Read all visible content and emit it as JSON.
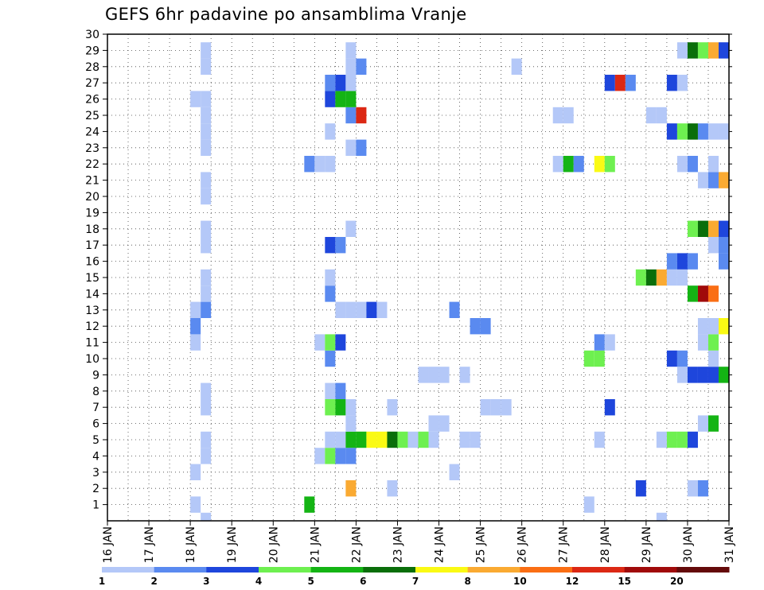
{
  "chart_data": {
    "type": "heatmap",
    "title": "GEFS 6hr padavine po ansamblima Vranje",
    "xlabel": "",
    "ylabel": "",
    "x_ticks": [
      "16 JAN",
      "17 JAN",
      "18 JAN",
      "19 JAN",
      "20 JAN",
      "21 JAN",
      "22 JAN",
      "23 JAN",
      "24 JAN",
      "25 JAN",
      "26 JAN",
      "27 JAN",
      "28 JAN",
      "29 JAN",
      "30 JAN",
      "31 JAN"
    ],
    "x_range_days": [
      0,
      15
    ],
    "y_ticks": [
      1,
      2,
      3,
      4,
      5,
      6,
      7,
      8,
      9,
      10,
      11,
      12,
      13,
      14,
      15,
      16,
      17,
      18,
      19,
      20,
      21,
      22,
      23,
      24,
      25,
      26,
      27,
      28,
      29,
      30
    ],
    "y_range": [
      0,
      30
    ],
    "grid": true,
    "colorbar": {
      "position": "bottom",
      "boundaries": [
        "1",
        "2",
        "3",
        "4",
        "5",
        "6",
        "7",
        "8",
        "10",
        "12",
        "15",
        "20"
      ],
      "colors": [
        "#b4c8f8",
        "#5a8af0",
        "#1e46dc",
        "#6ef050",
        "#14b414",
        "#0a6e0a",
        "#fafa14",
        "#faaa32",
        "#fa6e14",
        "#dc2814",
        "#a00a0a",
        "#640a0a"
      ]
    },
    "cells": [
      [
        2.0,
        1,
        1
      ],
      [
        4.75,
        1,
        5
      ],
      [
        11.5,
        1,
        1
      ],
      [
        5.75,
        2,
        8
      ],
      [
        6.75,
        2,
        1
      ],
      [
        12.75,
        2,
        3
      ],
      [
        14.0,
        2,
        1
      ],
      [
        14.25,
        2,
        2
      ],
      [
        2.0,
        3,
        1
      ],
      [
        8.25,
        3,
        1
      ],
      [
        2.25,
        4,
        1
      ],
      [
        5.0,
        4,
        1
      ],
      [
        5.25,
        4,
        4
      ],
      [
        5.5,
        4,
        2
      ],
      [
        5.75,
        4,
        2
      ],
      [
        2.25,
        5,
        1
      ],
      [
        5.25,
        5,
        1
      ],
      [
        5.5,
        5,
        1
      ],
      [
        5.75,
        5,
        5
      ],
      [
        6.0,
        5,
        5
      ],
      [
        6.25,
        5,
        7
      ],
      [
        6.5,
        5,
        7
      ],
      [
        6.75,
        5,
        6
      ],
      [
        7.0,
        5,
        4
      ],
      [
        7.25,
        5,
        1
      ],
      [
        7.5,
        5,
        4
      ],
      [
        7.75,
        5,
        1
      ],
      [
        8.5,
        5,
        1
      ],
      [
        8.75,
        5,
        1
      ],
      [
        11.75,
        5,
        1
      ],
      [
        13.25,
        5,
        1
      ],
      [
        13.5,
        5,
        4
      ],
      [
        13.75,
        5,
        4
      ],
      [
        14.0,
        5,
        3
      ],
      [
        5.75,
        6,
        1
      ],
      [
        7.75,
        6,
        1
      ],
      [
        8.0,
        6,
        1
      ],
      [
        14.25,
        6,
        1
      ],
      [
        14.5,
        6,
        5
      ],
      [
        2.25,
        7,
        1
      ],
      [
        5.25,
        7,
        4
      ],
      [
        5.5,
        7,
        5
      ],
      [
        5.75,
        7,
        1
      ],
      [
        6.75,
        7,
        1
      ],
      [
        9.0,
        7,
        1
      ],
      [
        9.25,
        7,
        1
      ],
      [
        9.5,
        7,
        1
      ],
      [
        12.0,
        7,
        3
      ],
      [
        2.25,
        8,
        1
      ],
      [
        5.25,
        8,
        1
      ],
      [
        5.5,
        8,
        2
      ],
      [
        7.5,
        9,
        1
      ],
      [
        7.75,
        9,
        1
      ],
      [
        8.0,
        9,
        1
      ],
      [
        8.5,
        9,
        1
      ],
      [
        13.75,
        9,
        1
      ],
      [
        14.0,
        9,
        3
      ],
      [
        14.25,
        9,
        3
      ],
      [
        14.5,
        9,
        3
      ],
      [
        14.75,
        9,
        5
      ],
      [
        5.25,
        10,
        2
      ],
      [
        11.5,
        10,
        4
      ],
      [
        11.75,
        10,
        4
      ],
      [
        13.5,
        10,
        3
      ],
      [
        13.75,
        10,
        2
      ],
      [
        14.5,
        10,
        1
      ],
      [
        2.0,
        11,
        1
      ],
      [
        5.0,
        11,
        1
      ],
      [
        5.25,
        11,
        4
      ],
      [
        5.5,
        11,
        3
      ],
      [
        11.75,
        11,
        2
      ],
      [
        12.0,
        11,
        1
      ],
      [
        14.25,
        11,
        1
      ],
      [
        14.5,
        11,
        4
      ],
      [
        2.0,
        12,
        2
      ],
      [
        8.75,
        12,
        2
      ],
      [
        9.0,
        12,
        2
      ],
      [
        14.25,
        12,
        1
      ],
      [
        14.5,
        12,
        1
      ],
      [
        14.75,
        12,
        7
      ],
      [
        2.0,
        13,
        1
      ],
      [
        2.25,
        13,
        2
      ],
      [
        5.5,
        13,
        1
      ],
      [
        5.75,
        13,
        1
      ],
      [
        6.0,
        13,
        1
      ],
      [
        6.25,
        13,
        3
      ],
      [
        6.5,
        13,
        1
      ],
      [
        8.25,
        13,
        2
      ],
      [
        2.25,
        14,
        1
      ],
      [
        5.25,
        14,
        2
      ],
      [
        14.0,
        14,
        5
      ],
      [
        14.25,
        14,
        11
      ],
      [
        14.5,
        14,
        9
      ],
      [
        2.25,
        15,
        1
      ],
      [
        5.25,
        15,
        1
      ],
      [
        12.75,
        15,
        4
      ],
      [
        13.0,
        15,
        6
      ],
      [
        13.25,
        15,
        8
      ],
      [
        13.5,
        15,
        1
      ],
      [
        13.75,
        15,
        1
      ],
      [
        13.5,
        16,
        2
      ],
      [
        13.75,
        16,
        3
      ],
      [
        14.0,
        16,
        2
      ],
      [
        14.75,
        16,
        2
      ],
      [
        2.25,
        17,
        1
      ],
      [
        5.25,
        17,
        3
      ],
      [
        5.5,
        17,
        2
      ],
      [
        14.5,
        17,
        1
      ],
      [
        14.75,
        17,
        2
      ],
      [
        2.25,
        18,
        1
      ],
      [
        5.75,
        18,
        1
      ],
      [
        14.0,
        18,
        4
      ],
      [
        14.25,
        18,
        6
      ],
      [
        14.5,
        18,
        8
      ],
      [
        14.75,
        18,
        3
      ],
      [
        2.25,
        20,
        1
      ],
      [
        2.25,
        21,
        1
      ],
      [
        14.25,
        21,
        1
      ],
      [
        14.5,
        21,
        2
      ],
      [
        14.75,
        21,
        8
      ],
      [
        4.75,
        22,
        2
      ],
      [
        5.0,
        22,
        1
      ],
      [
        5.25,
        22,
        1
      ],
      [
        10.75,
        22,
        1
      ],
      [
        11.0,
        22,
        5
      ],
      [
        11.25,
        22,
        2
      ],
      [
        11.75,
        22,
        7
      ],
      [
        12.0,
        22,
        4
      ],
      [
        13.75,
        22,
        1
      ],
      [
        14.0,
        22,
        2
      ],
      [
        14.5,
        22,
        1
      ],
      [
        2.25,
        23,
        1
      ],
      [
        5.75,
        23,
        1
      ],
      [
        6.0,
        23,
        2
      ],
      [
        2.25,
        24,
        1
      ],
      [
        5.25,
        24,
        1
      ],
      [
        13.5,
        24,
        3
      ],
      [
        13.75,
        24,
        4
      ],
      [
        14.0,
        24,
        6
      ],
      [
        14.25,
        24,
        2
      ],
      [
        14.5,
        24,
        1
      ],
      [
        14.75,
        24,
        1
      ],
      [
        2.25,
        25,
        1
      ],
      [
        5.75,
        25,
        2
      ],
      [
        6.0,
        25,
        10
      ],
      [
        10.75,
        25,
        1
      ],
      [
        11.0,
        25,
        1
      ],
      [
        13.0,
        25,
        1
      ],
      [
        13.25,
        25,
        1
      ],
      [
        2.0,
        26,
        1
      ],
      [
        2.25,
        26,
        1
      ],
      [
        5.25,
        26,
        3
      ],
      [
        5.5,
        26,
        5
      ],
      [
        5.75,
        26,
        5
      ],
      [
        5.25,
        27,
        2
      ],
      [
        5.5,
        27,
        3
      ],
      [
        5.75,
        27,
        1
      ],
      [
        12.0,
        27,
        3
      ],
      [
        12.25,
        27,
        10
      ],
      [
        12.5,
        27,
        2
      ],
      [
        13.5,
        27,
        3
      ],
      [
        13.75,
        27,
        1
      ],
      [
        2.25,
        28,
        1
      ],
      [
        5.75,
        28,
        1
      ],
      [
        6.0,
        28,
        2
      ],
      [
        9.75,
        28,
        1
      ],
      [
        2.25,
        29,
        1
      ],
      [
        5.75,
        29,
        1
      ],
      [
        13.75,
        29,
        1
      ],
      [
        14.0,
        29,
        6
      ],
      [
        14.25,
        29,
        4
      ],
      [
        14.5,
        29,
        8
      ],
      [
        14.75,
        29,
        3
      ],
      [
        13.25,
        0,
        1
      ],
      [
        2.25,
        0,
        1
      ]
    ]
  }
}
